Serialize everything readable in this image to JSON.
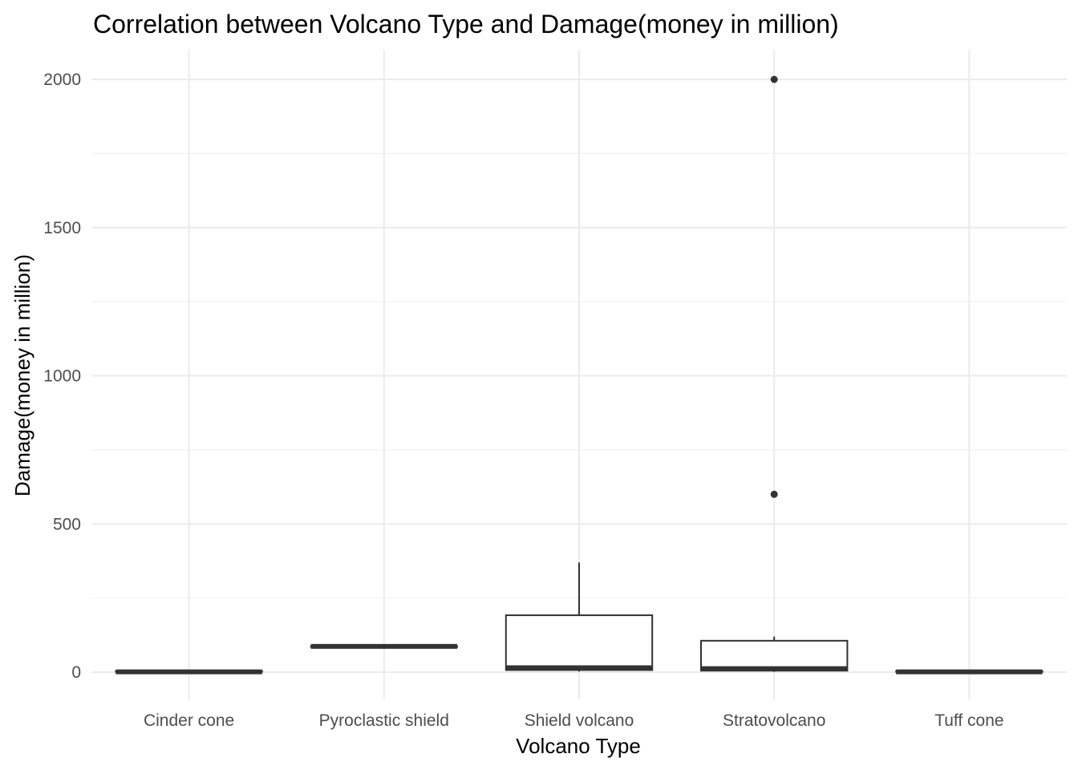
{
  "chart_data": {
    "type": "boxplot",
    "title": "Correlation between Volcano Type and Damage(money in million)",
    "xlabel": "Volcano Type",
    "ylabel": "Damage(money in million)",
    "ylim": [
      -95,
      2100
    ],
    "yticks": [
      0,
      500,
      1000,
      1500,
      2000
    ],
    "grid": true,
    "categories": [
      "Cinder cone",
      "Pyroclastic shield",
      "Shield volcano",
      "Stratovolcano",
      "Tuff cone"
    ],
    "boxes": [
      {
        "category": "Cinder cone",
        "min": 1,
        "q1": 1,
        "median": 1,
        "q3": 3,
        "max": 3,
        "outliers": []
      },
      {
        "category": "Pyroclastic shield",
        "min": 87,
        "q1": 87,
        "median": 87,
        "q3": 87,
        "max": 87,
        "outliers": []
      },
      {
        "category": "Shield volcano",
        "min": 2,
        "q1": 7,
        "median": 15,
        "q3": 192,
        "max": 370,
        "outliers": []
      },
      {
        "category": "Stratovolcano",
        "min": 1,
        "q1": 5,
        "median": 12,
        "q3": 106,
        "max": 120,
        "outliers": [
          600,
          2000
        ]
      },
      {
        "category": "Tuff cone",
        "min": 1,
        "q1": 1,
        "median": 1,
        "q3": 3,
        "max": 3,
        "outliers": []
      }
    ]
  }
}
